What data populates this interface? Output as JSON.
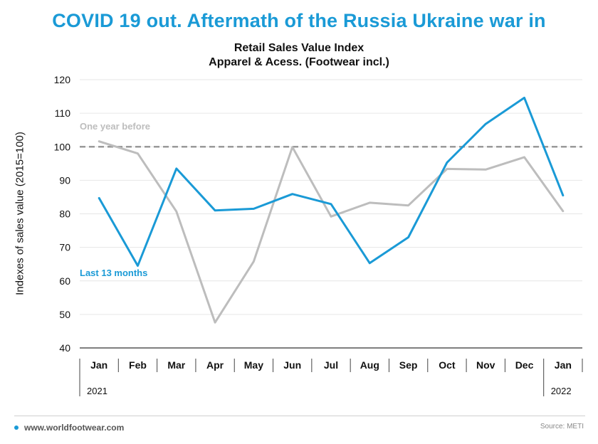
{
  "header": {
    "headline": "COVID 19 out. Aftermath of the Russia Ukraine war in"
  },
  "colors": {
    "accent": "#1a9ad6",
    "previous": "#bdbdbd",
    "reference": "#999999"
  },
  "chart_data": {
    "type": "line",
    "title": "Retail Sales Value Index",
    "subtitle": "Apparel & Acess. (Footwear incl.)",
    "xlabel": "",
    "ylabel": "Indexes of sales value (2015=100)",
    "ylim": [
      40,
      120
    ],
    "yticks": [
      40,
      50,
      60,
      70,
      80,
      90,
      100,
      110,
      120
    ],
    "grid": true,
    "categories": [
      "Jan",
      "Feb",
      "Mar",
      "Apr",
      "May",
      "Jun",
      "Jul",
      "Aug",
      "Sep",
      "Oct",
      "Nov",
      "Dec",
      "Jan"
    ],
    "year_labels": [
      "2021",
      "2022"
    ],
    "reference_line": 100,
    "series": [
      {
        "name": "Last 13 months",
        "color": "#1a9ad6",
        "values": [
          84.7,
          64.5,
          93.5,
          81.0,
          81.5,
          85.9,
          82.9,
          65.3,
          73.0,
          95.3,
          106.8,
          114.6,
          85.5
        ]
      },
      {
        "name": "One year before",
        "color": "#bdbdbd",
        "values": [
          101.6,
          98.0,
          80.7,
          47.6,
          65.8,
          99.9,
          79.2,
          83.3,
          82.5,
          93.4,
          93.2,
          96.9,
          80.8
        ]
      }
    ]
  },
  "footer": {
    "site": "www.worldfootwear.com",
    "source": "Source: METI"
  }
}
